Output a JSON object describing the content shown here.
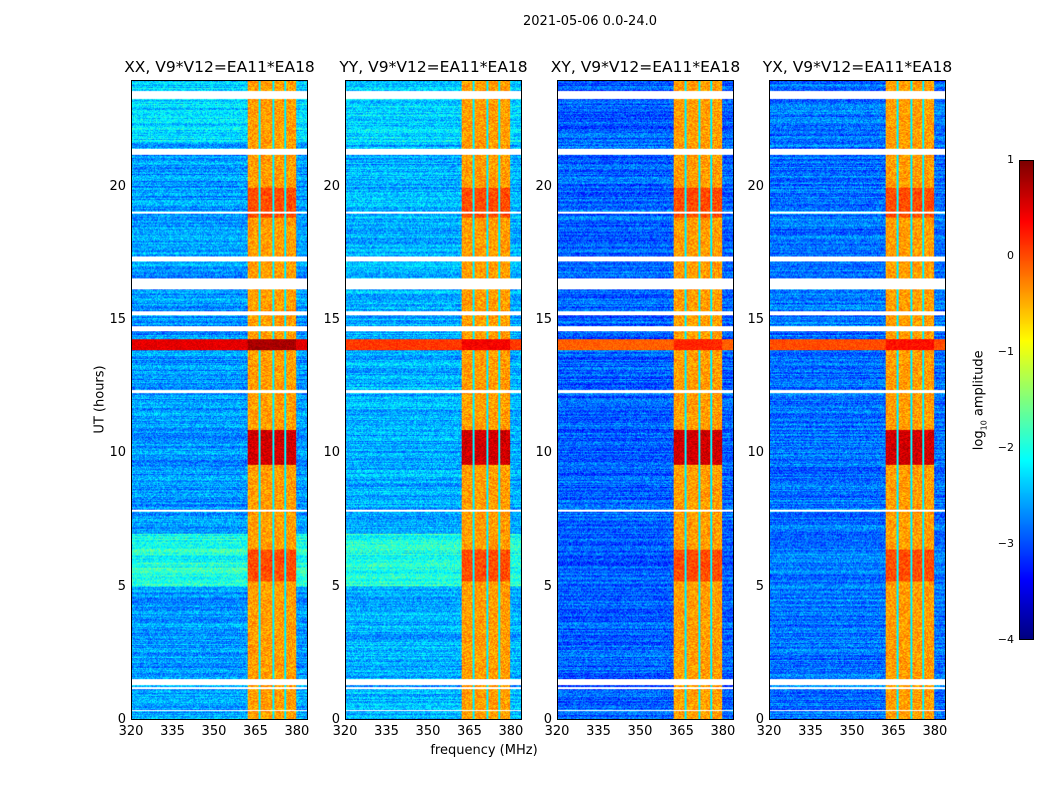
{
  "chart_data": {
    "type": "heatmap",
    "title": "2021-05-06 0.0-24.0",
    "xlabel": "frequency (MHz)",
    "ylabel": "UT (hours)",
    "xlim": [
      320,
      384
    ],
    "ylim": [
      0,
      24
    ],
    "xticks": [
      "320",
      "335",
      "350",
      "365",
      "380"
    ],
    "yticks": [
      "0",
      "5",
      "10",
      "15",
      "20"
    ],
    "colorbar": {
      "label": "log10 amplitude",
      "range": [
        -4,
        1
      ],
      "ticks": [
        "1",
        "0",
        "−1",
        "−2",
        "−3",
        "−4"
      ],
      "colormap": "jet"
    },
    "panels": [
      {
        "title": "XX, V9*V12=EA11*EA18",
        "background": -2.6,
        "strong_event_level": 0.8
      },
      {
        "title": "YY, V9*V12=EA11*EA18",
        "background": -2.5,
        "strong_event_level": 0.4
      },
      {
        "title": "XY, V9*V12=EA11*EA18",
        "background": -2.9,
        "strong_event_level": 0.2
      },
      {
        "title": "YX, V9*V12=EA11*EA18",
        "background": -2.8,
        "strong_event_level": 0.3
      }
    ],
    "rfi_band_mhz": [
      362,
      380
    ],
    "rfi_band_level": -0.4,
    "rfi_channel_gaps_mhz": [
      366.5,
      371.5,
      376
    ],
    "bright_events": [
      {
        "hours": [
          13.9,
          14.3
        ],
        "freq": "all"
      },
      {
        "hours": [
          9.6,
          10.9
        ],
        "freq": "rfi_band",
        "level": 0.6
      },
      {
        "hours": [
          18.9,
          20.0
        ],
        "freq": "rfi_band",
        "level": 0.0
      },
      {
        "hours": [
          5.2,
          6.4
        ],
        "freq": "rfi_band",
        "level": 0.0
      }
    ],
    "elevated_background": [
      {
        "hours": [
          5.0,
          7.0
        ],
        "level": -2.0
      },
      {
        "hours": [
          21.7,
          24
        ],
        "level": -2.3
      }
    ],
    "flagged_hours": [
      [
        23.35,
        23.65
      ],
      [
        21.25,
        21.45
      ],
      [
        19.05,
        19.12
      ],
      [
        17.25,
        17.4
      ],
      [
        16.2,
        16.6
      ],
      [
        15.2,
        15.35
      ],
      [
        14.6,
        14.8
      ],
      [
        12.3,
        12.38
      ],
      [
        7.8,
        7.88
      ],
      [
        1.3,
        1.5
      ],
      [
        1.15,
        1.22
      ],
      [
        0.3,
        0.35
      ]
    ]
  }
}
